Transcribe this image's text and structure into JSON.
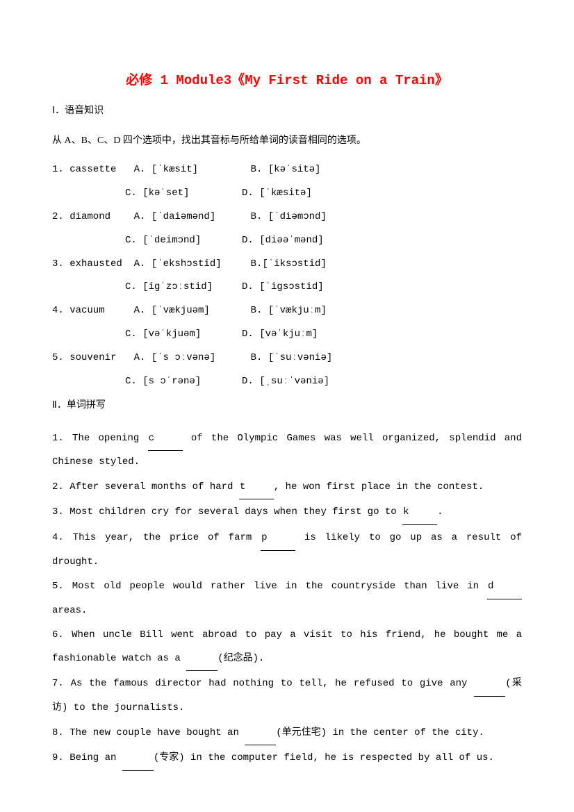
{
  "title": {
    "prefix": "必修 1 Module3",
    "book": "《My First Ride on a Train》",
    "color": "#ff0000"
  },
  "section1": {
    "head": "Ⅰ．语音知识",
    "instr": "从 A、B、C、D 四个选项中，找出其音标与所给单词的读音相同的选项。",
    "items": [
      {
        "n": "1.",
        "word": "cassette",
        "a": "A. [ˈkæsit]",
        "b": "B. [kəˈsitə]",
        "c": "C. [kəˈset]",
        "d": "D. [ˈkæsitə]"
      },
      {
        "n": "2.",
        "word": "diamond",
        "a": "A. [ˈdaiəmənd]",
        "b": "B. [ˈdiəmɔnd]",
        "c": "C. [ˈdeimɔnd]",
        "d": "D. [diəəˈmənd]"
      },
      {
        "n": "3.",
        "word": "exhausted",
        "a": "A. [ˈekshɔstid]",
        "b": "B.[ˈiksɔstid]",
        "c": "C. [igˈzɔːstid]",
        "d": "D. [ˈigsɔstid]"
      },
      {
        "n": "4.",
        "word": "vacuum",
        "a": "A. [ˈvækjuəm]",
        "b": "B. [ˈvækjuːm]",
        "c": "C. [vəˈkjuəm]",
        "d": "D. [vəˈkjuːm]"
      },
      {
        "n": "5.",
        "word": "souvenir",
        "a": "A. [ˈs ɔːvənə]",
        "b": "B. [ˈsuːvəniə]",
        "c": "C. [s ɔˈrənə]",
        "d": "D. [ˌsuːˈvəniə]"
      }
    ]
  },
  "section2": {
    "head": "Ⅱ．单词拼写",
    "items": [
      {
        "pre": "1. The opening ",
        "letter": "c",
        "post": " of the  Olympic Games was well organized, splendid and Chinese styled."
      },
      {
        "pre": "2. After several months of hard ",
        "letter": "t",
        "post": ", he won first place in the contest."
      },
      {
        "pre": "3. Most children cry for several days when they first go to ",
        "letter": "k",
        "post": "."
      },
      {
        "pre": "4. This year, the price of farm ",
        "letter": "p",
        "post": " is likely to go up as a result of drought."
      },
      {
        "pre": "5. Most old people would rather live in the countryside than live in ",
        "letter": "d",
        "post": " areas."
      },
      {
        "pre": "6. When uncle Bill went abroad to pay a visit to his friend, he bought me a fashionable watch as a ",
        "letter": "",
        "post": "(纪念品)."
      },
      {
        "pre": "7. As the famous director had nothing to tell, he refused to give any ",
        "letter": "",
        "post": "(采访) to the journalists."
      },
      {
        "pre": "8. The new couple have bought an ",
        "letter": "",
        "post": "(单元住宅) in the center of the city."
      },
      {
        "pre": "9. Being an ",
        "letter": "",
        "post": "(专家) in the computer field, he is respected by all of us."
      }
    ]
  }
}
